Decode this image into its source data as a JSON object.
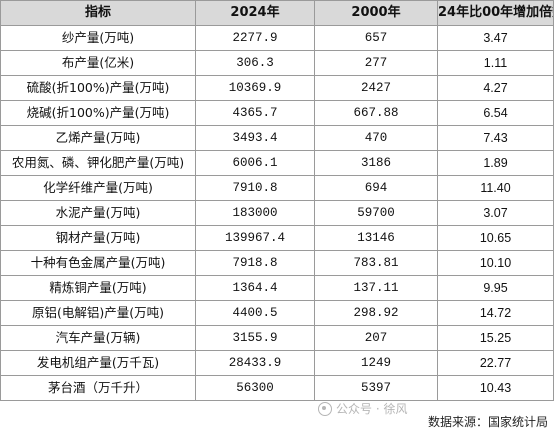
{
  "table": {
    "headers": [
      "指标",
      "2024年",
      "2000年",
      "24年比00年增加倍数"
    ],
    "rows": [
      [
        "纱产量(万吨)",
        "2277.9",
        "657",
        "3.47"
      ],
      [
        "布产量(亿米)",
        "306.3",
        "277",
        "1.11"
      ],
      [
        "硫酸(折100%)产量(万吨)",
        "10369.9",
        "2427",
        "4.27"
      ],
      [
        "烧碱(折100%)产量(万吨)",
        "4365.7",
        "667.88",
        "6.54"
      ],
      [
        "乙烯产量(万吨)",
        "3493.4",
        "470",
        "7.43"
      ],
      [
        "农用氮、磷、钾化肥产量(万吨)",
        "6006.1",
        "3186",
        "1.89"
      ],
      [
        "化学纤维产量(万吨)",
        "7910.8",
        "694",
        "11.40"
      ],
      [
        "水泥产量(万吨)",
        "183000",
        "59700",
        "3.07"
      ],
      [
        "钢材产量(万吨)",
        "139967.4",
        "13146",
        "10.65"
      ],
      [
        "十种有色金属产量(万吨)",
        "7918.8",
        "783.81",
        "10.10"
      ],
      [
        "精炼铜产量(万吨)",
        "1364.4",
        "137.11",
        "9.95"
      ],
      [
        "原铝(电解铝)产量(万吨)",
        "4400.5",
        "298.92",
        "14.72"
      ],
      [
        "汽车产量(万辆)",
        "3155.9",
        "207",
        "15.25"
      ],
      [
        "发电机组产量(万千瓦)",
        "28433.9",
        "1249",
        "22.77"
      ],
      [
        "茅台酒（万千升）",
        "56300",
        "5397",
        "10.43"
      ]
    ]
  },
  "watermark": {
    "text": "公众号 · 徐风",
    "icon": "wechat-icon"
  },
  "footer": {
    "source_label": "数据来源：国家统计局"
  },
  "colors": {
    "header_bg": "#d9d9d9",
    "border": "#9a9a9a"
  }
}
